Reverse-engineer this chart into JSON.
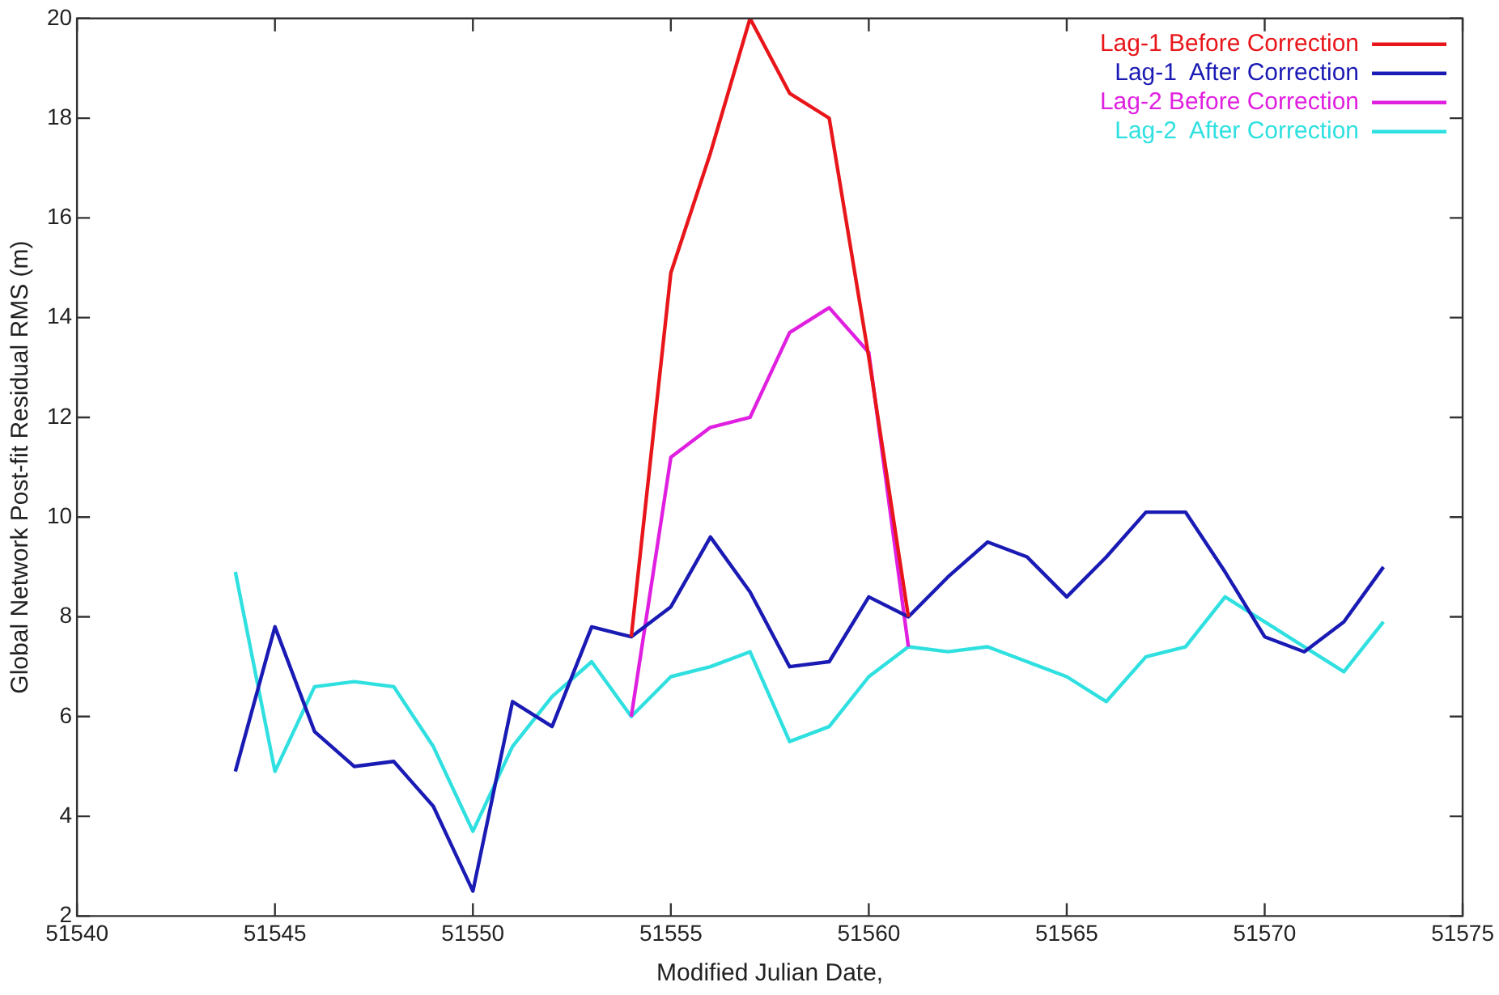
{
  "chart_data": {
    "type": "line",
    "xlabel": "Modified Julian Date,",
    "ylabel": "Global Network Post-fit Residual RMS (m)",
    "xlim": [
      51540,
      51575
    ],
    "xticks": [
      51540,
      51545,
      51550,
      51555,
      51560,
      51565,
      51570,
      51575
    ],
    "ylim": [
      2,
      20
    ],
    "yticks": [
      2,
      4,
      6,
      8,
      10,
      12,
      14,
      16,
      18,
      20
    ],
    "legend": "top right",
    "marker": "none",
    "line_style": "solid",
    "series": [
      {
        "name": "Lag-1 Before Correction",
        "color": "#e8161a",
        "x": [
          51554,
          51555,
          51556,
          51557,
          51558,
          51559,
          51560,
          51561
        ],
        "values": [
          7.6,
          14.9,
          17.3,
          20.0,
          18.5,
          18.0,
          13.2,
          8.0
        ]
      },
      {
        "name": "Lag-1  After Correction",
        "color": "#1a1ab4",
        "x": [
          51544,
          51545,
          51546,
          51547,
          51548,
          51549,
          51550,
          51551,
          51552,
          51553,
          51554,
          51555,
          51556,
          51557,
          51558,
          51559,
          51560,
          51561,
          51562,
          51563,
          51564,
          51565,
          51566,
          51567,
          51568,
          51569,
          51570,
          51571,
          51572,
          51573
        ],
        "values": [
          4.9,
          7.8,
          5.7,
          5.0,
          5.1,
          4.2,
          2.5,
          6.3,
          5.8,
          7.8,
          7.6,
          8.2,
          9.6,
          8.5,
          7.0,
          7.1,
          8.4,
          8.0,
          8.8,
          9.5,
          9.2,
          8.4,
          9.2,
          10.1,
          10.1,
          8.9,
          7.6,
          7.3,
          7.9,
          9.0
        ]
      },
      {
        "name": "Lag-2 Before Correction",
        "color": "#e020e0",
        "x": [
          51554,
          51555,
          51556,
          51557,
          51558,
          51559,
          51560,
          51561
        ],
        "values": [
          6.0,
          11.2,
          11.8,
          12.0,
          13.7,
          14.2,
          13.3,
          7.4
        ]
      },
      {
        "name": "Lag-2  After Correction",
        "color": "#30e0e0",
        "x": [
          51544,
          51545,
          51546,
          51547,
          51548,
          51549,
          51550,
          51551,
          51552,
          51553,
          51554,
          51555,
          51556,
          51557,
          51558,
          51559,
          51560,
          51561,
          51562,
          51563,
          51564,
          51565,
          51566,
          51567,
          51568,
          51569,
          51570,
          51571,
          51572,
          51573
        ],
        "values": [
          8.9,
          4.9,
          6.6,
          6.7,
          6.6,
          5.4,
          3.7,
          5.4,
          6.4,
          7.1,
          6.0,
          6.8,
          7.0,
          7.3,
          5.5,
          5.8,
          6.8,
          7.4,
          7.3,
          7.4,
          7.1,
          6.8,
          6.3,
          7.2,
          7.4,
          8.4,
          7.9,
          7.4,
          6.9,
          7.9
        ]
      }
    ]
  }
}
